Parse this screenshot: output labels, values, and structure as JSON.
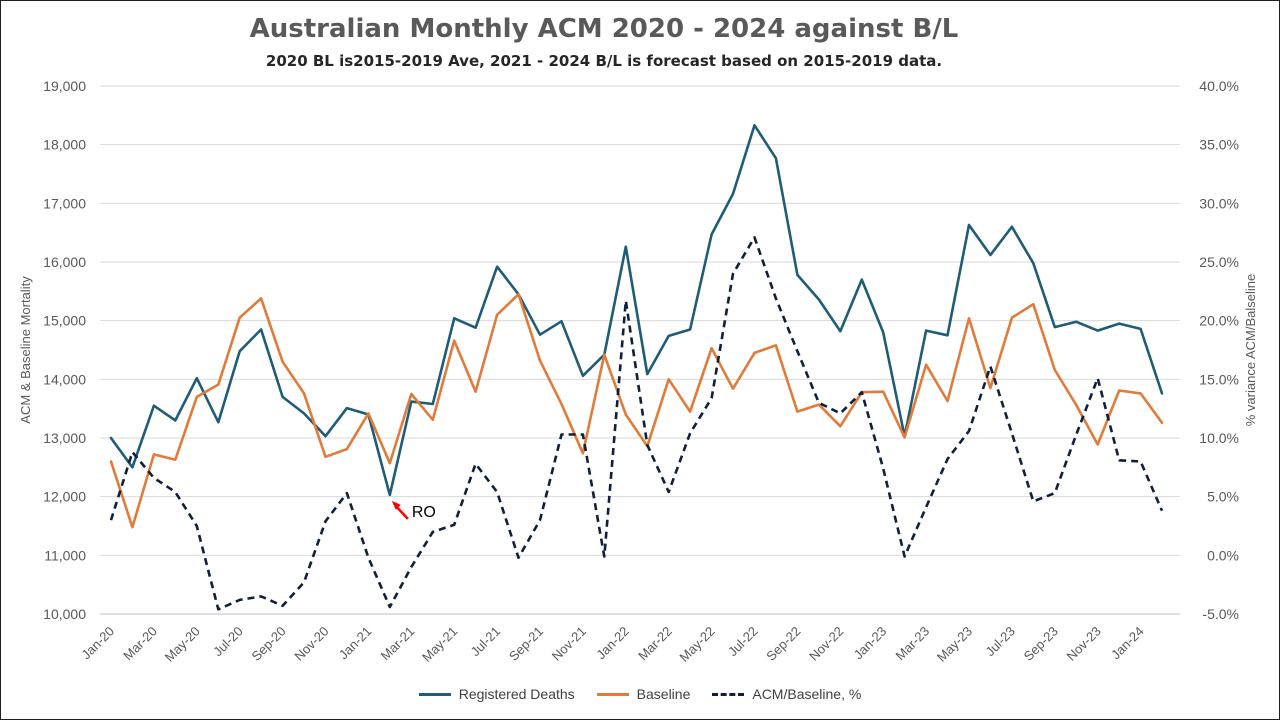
{
  "chart_data": {
    "type": "line",
    "title": "Australian Monthly ACM 2020 - 2024 against B/L",
    "subtitle": "2020 BL is2015-2019 Ave, 2021 - 2024 B/L is forecast based on 2015-2019 data.",
    "ylabel_left": "ACM & Baseline Mortality",
    "ylabel_right": "% variance ACM/Balseline",
    "ylim_left": [
      10000,
      19000
    ],
    "ylim_right": [
      -5.0,
      40.0
    ],
    "yticks_left": [
      "10,000",
      "11,000",
      "12,000",
      "13,000",
      "14,000",
      "15,000",
      "16,000",
      "17,000",
      "18,000",
      "19,000"
    ],
    "yticks_right": [
      "-5.0%",
      "0.0%",
      "5.0%",
      "10.0%",
      "15.0%",
      "20.0%",
      "25.0%",
      "30.0%",
      "35.0%",
      "40.0%"
    ],
    "x": [
      "Jan-20",
      "Feb-20",
      "Mar-20",
      "Apr-20",
      "May-20",
      "Jun-20",
      "Jul-20",
      "Aug-20",
      "Sep-20",
      "Oct-20",
      "Nov-20",
      "Dec-20",
      "Jan-21",
      "Feb-21",
      "Mar-21",
      "Apr-21",
      "May-21",
      "Jun-21",
      "Jul-21",
      "Aug-21",
      "Sep-21",
      "Oct-21",
      "Nov-21",
      "Dec-21",
      "Jan-22",
      "Feb-22",
      "Mar-22",
      "Apr-22",
      "May-22",
      "Jun-22",
      "Jul-22",
      "Aug-22",
      "Sep-22",
      "Oct-22",
      "Nov-22",
      "Dec-22",
      "Jan-23",
      "Feb-23",
      "Mar-23",
      "Apr-23",
      "May-23",
      "Jun-23",
      "Jul-23",
      "Aug-23",
      "Sep-23",
      "Oct-23",
      "Nov-23",
      "Dec-23",
      "Jan-24",
      "Feb-24"
    ],
    "xtick_labels": [
      "Jan-20",
      "Mar-20",
      "May-20",
      "Jul-20",
      "Sep-20",
      "Nov-20",
      "Jan-21",
      "Mar-21",
      "May-21",
      "Jul-21",
      "Sep-21",
      "Nov-21",
      "Jan-22",
      "Mar-22",
      "May-22",
      "Jul-22",
      "Sep-22",
      "Nov-22",
      "Jan-23",
      "Mar-23",
      "May-23",
      "Jul-23",
      "Sep-23",
      "Nov-23",
      "Jan-24"
    ],
    "series": [
      {
        "name": "Registered Deaths",
        "axis": "left",
        "color": "#1f5c78",
        "style": "solid",
        "values": [
          13000,
          12500,
          13550,
          13300,
          14020,
          13270,
          14480,
          14850,
          13700,
          13420,
          13030,
          13510,
          13400,
          12030,
          13620,
          13580,
          15040,
          14880,
          15920,
          15450,
          14760,
          14990,
          14060,
          14420,
          16260,
          14090,
          14740,
          14850,
          16470,
          17160,
          18330,
          17770,
          15780,
          15360,
          14820,
          15700,
          14800,
          13030,
          14830,
          14750,
          16630,
          16120,
          16600,
          15980,
          14890,
          14980,
          14830,
          14950,
          14860,
          13760
        ]
      },
      {
        "name": "Baseline",
        "axis": "left",
        "color": "#e07b39",
        "style": "solid",
        "values": [
          12600,
          11480,
          12720,
          12630,
          13700,
          13910,
          15050,
          15380,
          14300,
          13760,
          12680,
          12810,
          13420,
          12570,
          13750,
          13310,
          14660,
          13790,
          15100,
          15450,
          14320,
          13580,
          12740,
          14420,
          13400,
          12860,
          14000,
          13450,
          14530,
          13840,
          14450,
          14580,
          13450,
          13570,
          13200,
          13780,
          13790,
          13010,
          14250,
          13630,
          15040,
          13850,
          15050,
          15280,
          14160,
          13560,
          12890,
          13810,
          13760,
          13260
        ]
      },
      {
        "name": "ACM/Baseline, %",
        "axis": "right",
        "color": "#0f1f3d",
        "style": "dashed",
        "values": [
          3.0,
          8.8,
          6.6,
          5.4,
          2.5,
          -4.6,
          -3.8,
          -3.5,
          -4.3,
          -2.3,
          2.9,
          5.3,
          -0.2,
          -4.4,
          -1.0,
          2.0,
          2.6,
          7.8,
          5.4,
          -0.2,
          3.0,
          10.3,
          10.3,
          -0.1,
          21.7,
          9.4,
          5.4,
          10.4,
          13.4,
          24.0,
          27.1,
          21.9,
          17.4,
          13.0,
          12.1,
          13.9,
          7.4,
          -0.1,
          4.1,
          8.2,
          10.6,
          16.1,
          10.4,
          4.6,
          5.3,
          10.3,
          15.1,
          8.1,
          8.0,
          3.8
        ]
      }
    ],
    "annotations": [
      {
        "text": "RO",
        "x": "Feb-21"
      }
    ],
    "legend": "bottom",
    "grid": "horizontal"
  }
}
